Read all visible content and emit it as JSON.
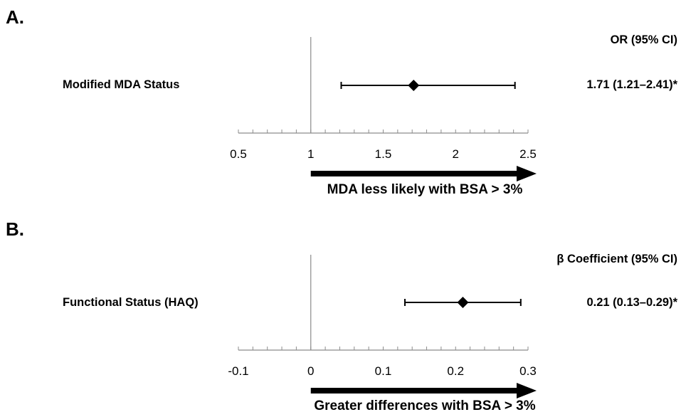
{
  "chart_data": [
    {
      "type": "forest",
      "panel_label": "A.",
      "stat_header": "OR (95% CI)",
      "reference_value": 1,
      "xlim": [
        0.5,
        2.5
      ],
      "major_ticks": [
        0.5,
        1,
        1.5,
        2,
        2.5
      ],
      "tick_labels": [
        "0.5",
        "1",
        "1.5",
        "2",
        "2.5"
      ],
      "minor_step": 0.1,
      "rows": [
        {
          "label": "Modified MDA Status",
          "estimate": 1.71,
          "ci_low": 1.21,
          "ci_high": 2.41,
          "stat_text": "1.71 (1.21–2.41)*"
        }
      ],
      "arrow_caption": "MDA less likely with BSA > 3%",
      "arrow_from": 1,
      "arrow_to": 2.5
    },
    {
      "type": "forest",
      "panel_label": "B.",
      "stat_header": "β Coefficient (95% CI)",
      "reference_value": 0,
      "xlim": [
        -0.1,
        0.3
      ],
      "major_ticks": [
        -0.1,
        0,
        0.1,
        0.2,
        0.3
      ],
      "tick_labels": [
        "-0.1",
        "0",
        "0.1",
        "0.2",
        "0.3"
      ],
      "minor_step": 0.02,
      "rows": [
        {
          "label": "Functional Status (HAQ)",
          "estimate": 0.21,
          "ci_low": 0.13,
          "ci_high": 0.29,
          "stat_text": "0.21 (0.13–0.29)*"
        }
      ],
      "arrow_caption": "Greater differences with BSA > 3%",
      "arrow_from": 0,
      "arrow_to": 0.3
    }
  ],
  "colors": {
    "ink": "#000000",
    "reference_line": "#8c8c8c",
    "axis": "#8c8c8c"
  }
}
